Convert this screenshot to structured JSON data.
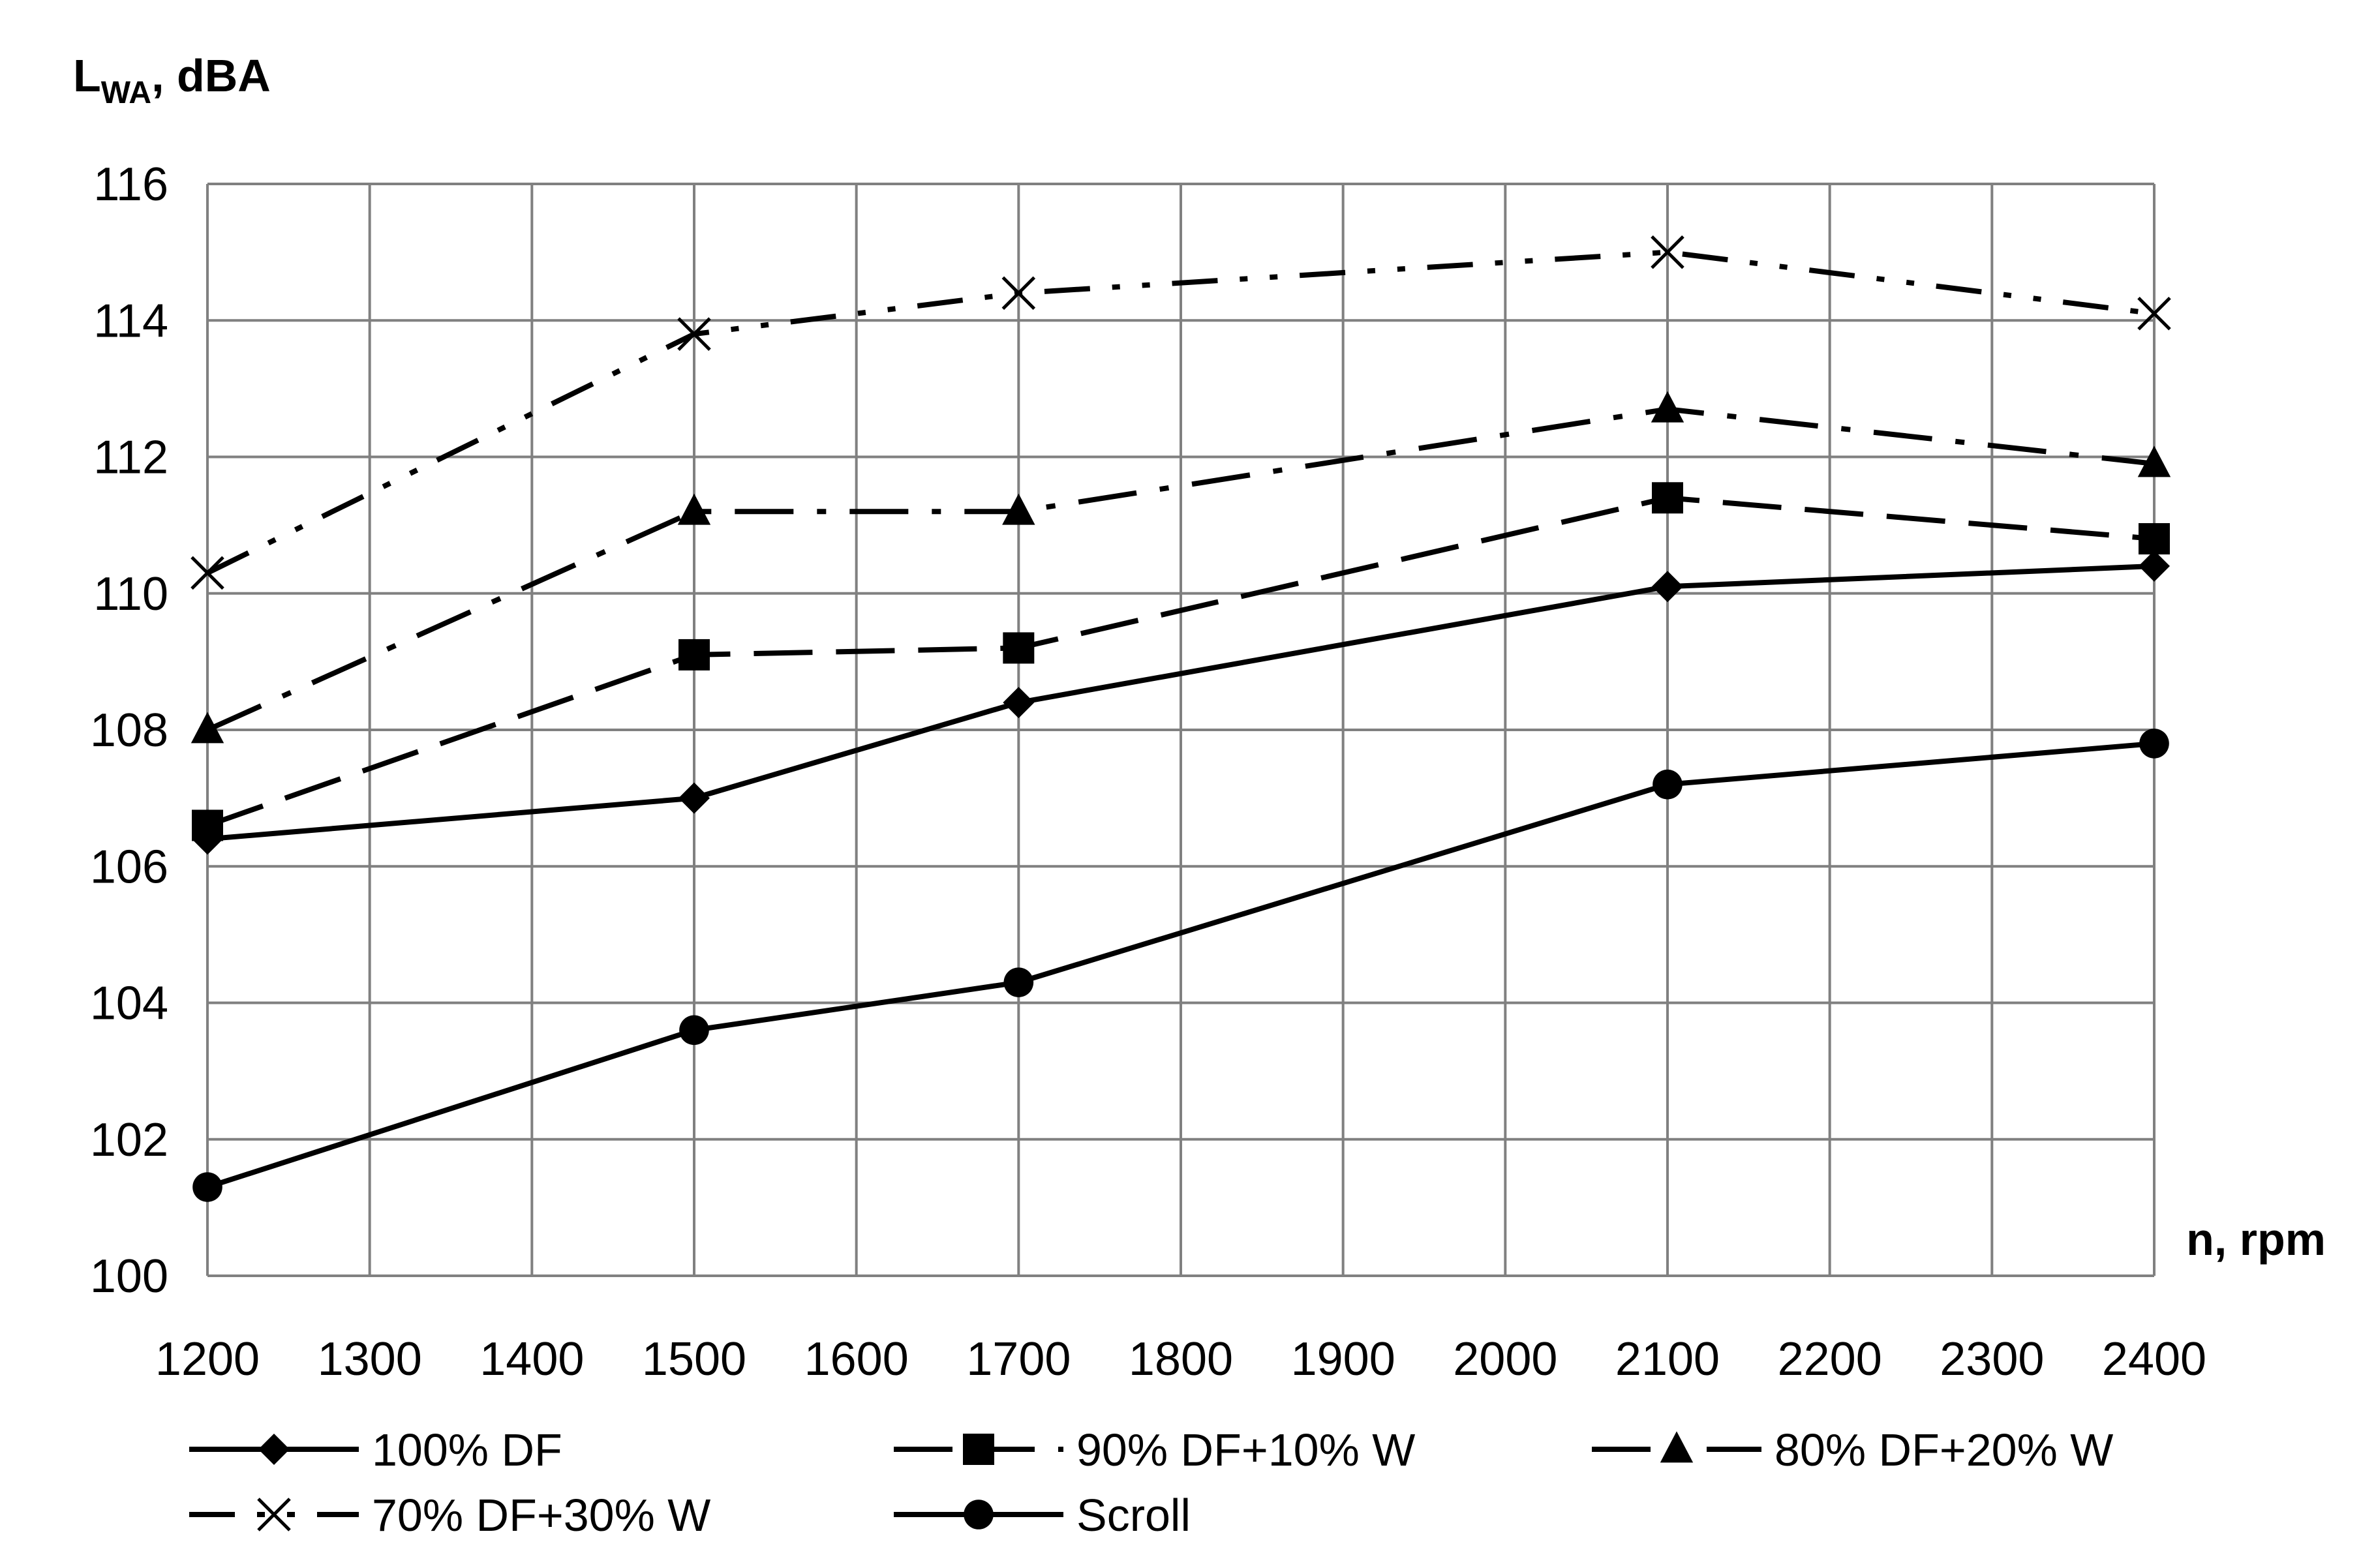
{
  "chart_data": {
    "type": "line",
    "title": "",
    "ylabel": {
      "main": "L",
      "sub": "WA",
      "rest": ", dBA"
    },
    "xlabel": "n, rpm",
    "ylim": [
      100,
      116
    ],
    "xlim": [
      1200,
      2400
    ],
    "y_ticks": [
      100,
      102,
      104,
      106,
      108,
      110,
      112,
      114,
      116
    ],
    "x_ticks": [
      1200,
      1300,
      1400,
      1500,
      1600,
      1700,
      1800,
      1900,
      2000,
      2100,
      2200,
      2300,
      2400
    ],
    "x_values": [
      1200,
      1500,
      1700,
      2100,
      2400
    ],
    "grid": true,
    "legend_position": "bottom",
    "series": [
      {
        "name": "100% DF",
        "marker": "diamond",
        "dash": "solid",
        "values": [
          106.4,
          107.0,
          108.4,
          110.1,
          110.4
        ]
      },
      {
        "name": "90% DF+10% W",
        "marker": "square",
        "dash": "dashed",
        "values": [
          106.6,
          109.1,
          109.2,
          111.4,
          110.8
        ]
      },
      {
        "name": "80% DF+20% W",
        "marker": "triangle",
        "dash": "dash-dot",
        "values": [
          108.0,
          111.2,
          111.2,
          112.7,
          111.9
        ]
      },
      {
        "name": "70% DF+30% W",
        "marker": "x",
        "dash": "dash-dot-dot",
        "values": [
          110.3,
          113.8,
          114.4,
          115.0,
          114.1
        ]
      },
      {
        "name": "Scroll",
        "marker": "circle",
        "dash": "solid",
        "values": [
          101.3,
          103.6,
          104.3,
          107.2,
          107.8
        ]
      }
    ]
  }
}
